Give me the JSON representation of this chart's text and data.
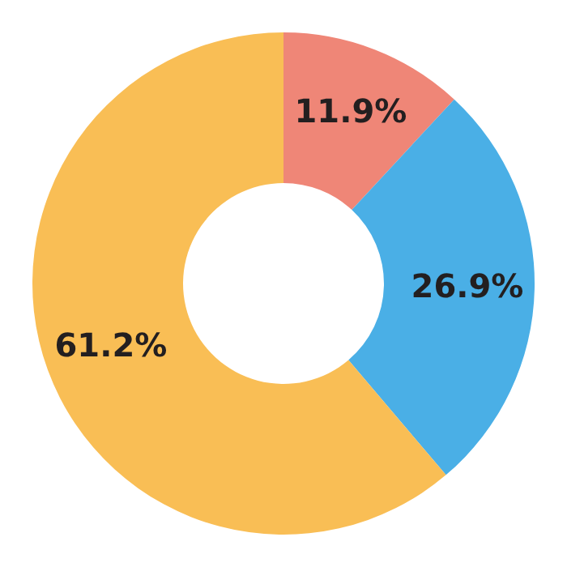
{
  "chart_data": {
    "type": "donut",
    "categories": [
      null,
      null,
      null
    ],
    "values": [
      11.9,
      26.9,
      61.2
    ],
    "colors": [
      "#ef8677",
      "#4aafe6",
      "#f9be55"
    ],
    "value_labels": [
      "11.9%",
      "26.9%",
      "61.2%"
    ]
  }
}
